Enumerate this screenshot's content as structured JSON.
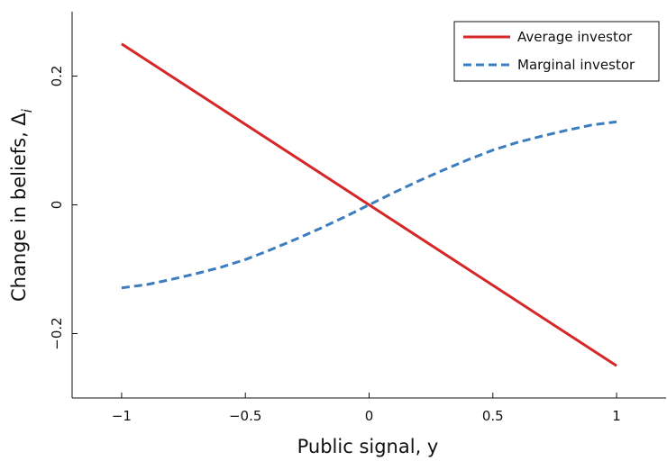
{
  "chart_data": {
    "type": "line",
    "xlabel": "Public signal, y",
    "ylabel": "Change in beliefs, Δ",
    "ylabel_subscript": "i",
    "xlim": [
      -1.2,
      1.2
    ],
    "ylim": [
      -0.3,
      0.3
    ],
    "x_ticks": [
      -1,
      -0.5,
      0,
      0.5,
      1
    ],
    "x_tick_labels": [
      "−1",
      "−0.5",
      "0",
      "0.5",
      "1"
    ],
    "y_ticks": [
      -0.2,
      0,
      0.2
    ],
    "y_tick_labels": [
      "−0.2",
      "0",
      "0.2"
    ],
    "grid": false,
    "legend_position": "top-right",
    "series": [
      {
        "name": "Average investor",
        "color": "#d62728",
        "style": "solid",
        "x": [
          -1,
          -0.5,
          0,
          0.5,
          1
        ],
        "values": [
          0.25,
          0.125,
          0,
          -0.125,
          -0.25
        ]
      },
      {
        "name": "Marginal investor",
        "color": "#3b7dbf",
        "style": "dashed",
        "x": [
          -1,
          -0.9,
          -0.8,
          -0.7,
          -0.6,
          -0.5,
          -0.4,
          -0.3,
          -0.2,
          -0.1,
          0,
          0.1,
          0.2,
          0.3,
          0.4,
          0.5,
          0.6,
          0.7,
          0.8,
          0.9,
          1
        ],
        "values": [
          -0.129,
          -0.124,
          -0.116,
          -0.107,
          -0.097,
          -0.085,
          -0.07,
          -0.054,
          -0.037,
          -0.019,
          0,
          0.019,
          0.037,
          0.054,
          0.07,
          0.085,
          0.097,
          0.107,
          0.116,
          0.124,
          0.129
        ]
      }
    ]
  }
}
